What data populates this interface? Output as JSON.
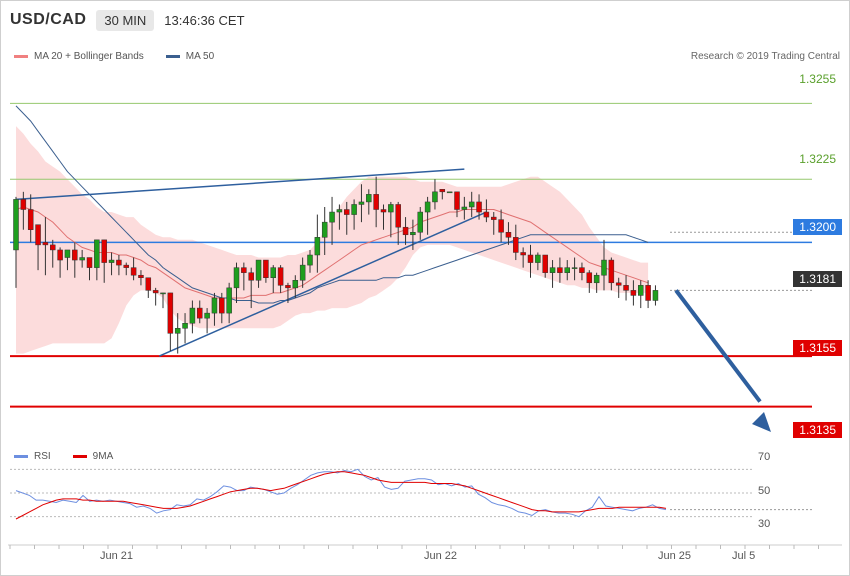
{
  "header": {
    "symbol": "USD/CAD",
    "timeframe": "30 MIN",
    "time": "13:46:36 CET"
  },
  "legend": {
    "bollinger_label": "MA 20 + Bollinger Bands",
    "ma50_label": "MA 50",
    "rsi_label": "RSI",
    "rsi_ma_label": "9MA"
  },
  "copyright": "Research © 2019 Trading Central",
  "colors": {
    "bull": "#1e9e1e",
    "bear": "#e00000",
    "band": "#fcdcdc",
    "ma20": "#e07070",
    "ma50": "#3b5f8f",
    "resistance": "#2d7be0",
    "support": "#e00000",
    "pivot_line": "#96c86e",
    "arrow": "#2e5f9e",
    "rsi": "#6d8fe0"
  },
  "chart_data": {
    "type": "candlestick",
    "y_range": [
      1.3121,
      1.3269
    ],
    "price_labels": {
      "upper1": "1.3255",
      "upper2": "1.3225",
      "resistance": "1.3200",
      "last": "1.3181",
      "support1": "1.3155",
      "support2": "1.3135"
    },
    "x_labels": [
      "Jun 21",
      "Jun 22",
      "Jun 25",
      "Jul 5"
    ],
    "candles": [
      [
        1.3197,
        1.3218,
        1.3182,
        1.3217
      ],
      [
        1.3217,
        1.322,
        1.3205,
        1.3213
      ],
      [
        1.3213,
        1.3219,
        1.32,
        1.3205
      ],
      [
        1.3207,
        1.3206,
        1.3189,
        1.3199
      ],
      [
        1.32,
        1.321,
        1.3187,
        1.3199
      ],
      [
        1.3199,
        1.3201,
        1.319,
        1.3197
      ],
      [
        1.3197,
        1.3198,
        1.3186,
        1.3193
      ],
      [
        1.3194,
        1.3196,
        1.3189,
        1.3197
      ],
      [
        1.3197,
        1.32,
        1.3186,
        1.3193
      ],
      [
        1.3193,
        1.3197,
        1.319,
        1.3194
      ],
      [
        1.3194,
        1.3194,
        1.3185,
        1.319
      ],
      [
        1.319,
        1.3201,
        1.3185,
        1.3201
      ],
      [
        1.3201,
        1.3201,
        1.3184,
        1.3192
      ],
      [
        1.3192,
        1.3196,
        1.3187,
        1.3193
      ],
      [
        1.3193,
        1.3195,
        1.3187,
        1.3191
      ],
      [
        1.3191,
        1.3192,
        1.3187,
        1.319
      ],
      [
        1.319,
        1.3194,
        1.3185,
        1.3187
      ],
      [
        1.3187,
        1.3189,
        1.3183,
        1.3186
      ],
      [
        1.3186,
        1.3186,
        1.3178,
        1.3181
      ],
      [
        1.3181,
        1.3182,
        1.3175,
        1.318
      ],
      [
        1.318,
        1.318,
        1.3174,
        1.318
      ],
      [
        1.318,
        1.318,
        1.3157,
        1.3164
      ],
      [
        1.3164,
        1.3172,
        1.3156,
        1.3166
      ],
      [
        1.3166,
        1.3172,
        1.316,
        1.3168
      ],
      [
        1.3168,
        1.3177,
        1.3164,
        1.3174
      ],
      [
        1.3174,
        1.3177,
        1.3168,
        1.317
      ],
      [
        1.317,
        1.3174,
        1.3164,
        1.3172
      ],
      [
        1.3172,
        1.318,
        1.3167,
        1.3178
      ],
      [
        1.3178,
        1.318,
        1.3168,
        1.3172
      ],
      [
        1.3172,
        1.3184,
        1.3168,
        1.3182
      ],
      [
        1.3182,
        1.3192,
        1.3176,
        1.319
      ],
      [
        1.319,
        1.3192,
        1.3181,
        1.3188
      ],
      [
        1.3188,
        1.319,
        1.3174,
        1.3185
      ],
      [
        1.3185,
        1.3193,
        1.3182,
        1.3193
      ],
      [
        1.3193,
        1.3193,
        1.3184,
        1.3186
      ],
      [
        1.3186,
        1.3191,
        1.318,
        1.319
      ],
      [
        1.319,
        1.3191,
        1.318,
        1.3183
      ],
      [
        1.3183,
        1.3184,
        1.3176,
        1.3182
      ],
      [
        1.3182,
        1.3187,
        1.3178,
        1.3185
      ],
      [
        1.3185,
        1.3194,
        1.3182,
        1.3191
      ],
      [
        1.3191,
        1.3197,
        1.3188,
        1.3195
      ],
      [
        1.3195,
        1.3211,
        1.3188,
        1.3202
      ],
      [
        1.3202,
        1.3214,
        1.3195,
        1.3208
      ],
      [
        1.3208,
        1.3218,
        1.3199,
        1.3212
      ],
      [
        1.3212,
        1.3215,
        1.3205,
        1.3213
      ],
      [
        1.3213,
        1.3216,
        1.3203,
        1.3211
      ],
      [
        1.3211,
        1.3217,
        1.3205,
        1.3215
      ],
      [
        1.3215,
        1.3223,
        1.3208,
        1.3216
      ],
      [
        1.3216,
        1.3221,
        1.3211,
        1.3219
      ],
      [
        1.3219,
        1.3226,
        1.3206,
        1.3213
      ],
      [
        1.3213,
        1.3215,
        1.3205,
        1.3212
      ],
      [
        1.3212,
        1.3216,
        1.3202,
        1.3215
      ],
      [
        1.3215,
        1.3216,
        1.3199,
        1.3206
      ],
      [
        1.3206,
        1.321,
        1.3199,
        1.3203
      ],
      [
        1.3203,
        1.3209,
        1.3197,
        1.3204
      ],
      [
        1.3204,
        1.3214,
        1.3201,
        1.3212
      ],
      [
        1.3212,
        1.3218,
        1.3203,
        1.3216
      ],
      [
        1.3216,
        1.3225,
        1.3213,
        1.322
      ],
      [
        1.3221,
        1.3221,
        1.3217,
        1.322
      ],
      [
        1.322,
        1.322,
        1.322,
        1.322
      ],
      [
        1.322,
        1.322,
        1.321,
        1.3213
      ],
      [
        1.3213,
        1.3218,
        1.3209,
        1.3214
      ],
      [
        1.3214,
        1.322,
        1.321,
        1.3216
      ],
      [
        1.3216,
        1.3219,
        1.3209,
        1.3212
      ],
      [
        1.3212,
        1.3217,
        1.3208,
        1.321
      ],
      [
        1.321,
        1.3212,
        1.3203,
        1.3209
      ],
      [
        1.3209,
        1.3213,
        1.32,
        1.3204
      ],
      [
        1.3204,
        1.3208,
        1.3199,
        1.3202
      ],
      [
        1.3202,
        1.3207,
        1.3193,
        1.3196
      ],
      [
        1.3196,
        1.3198,
        1.319,
        1.3195
      ],
      [
        1.3195,
        1.3199,
        1.3186,
        1.3192
      ],
      [
        1.3192,
        1.3196,
        1.3189,
        1.3195
      ],
      [
        1.3195,
        1.3195,
        1.3186,
        1.3188
      ],
      [
        1.3188,
        1.3193,
        1.3182,
        1.319
      ],
      [
        1.319,
        1.3194,
        1.3184,
        1.3188
      ],
      [
        1.3188,
        1.3193,
        1.3185,
        1.319
      ],
      [
        1.319,
        1.3194,
        1.3185,
        1.319
      ],
      [
        1.319,
        1.3192,
        1.3185,
        1.3188
      ],
      [
        1.3188,
        1.3189,
        1.318,
        1.3184
      ],
      [
        1.3184,
        1.3188,
        1.318,
        1.3187
      ],
      [
        1.3187,
        1.3201,
        1.3181,
        1.3193
      ],
      [
        1.3193,
        1.3194,
        1.3181,
        1.3184
      ],
      [
        1.3184,
        1.3186,
        1.3178,
        1.3183
      ],
      [
        1.3183,
        1.3187,
        1.3177,
        1.3181
      ],
      [
        1.3181,
        1.3185,
        1.3175,
        1.3179
      ],
      [
        1.3179,
        1.3185,
        1.3174,
        1.3183
      ],
      [
        1.3183,
        1.3185,
        1.3174,
        1.3177
      ],
      [
        1.3177,
        1.3183,
        1.3175,
        1.3181
      ]
    ],
    "ma50": [
      1.3254,
      1.3251,
      1.3248,
      1.3244,
      1.324,
      1.3236,
      1.3232,
      1.3228,
      1.3225,
      1.3222,
      1.3219,
      1.3216,
      1.3213,
      1.321,
      1.3207,
      1.3204,
      1.3201,
      1.3198,
      1.3195,
      1.3193,
      1.319,
      1.3188,
      1.3186,
      1.3184,
      1.3182,
      1.3181,
      1.318,
      1.3179,
      1.3178,
      1.3178,
      1.3177,
      1.3177,
      1.3177,
      1.3176,
      1.3176,
      1.3176,
      1.3177,
      1.3177,
      1.3178,
      1.3179,
      1.318,
      1.3182,
      1.3183,
      1.3184,
      1.3185,
      1.3185,
      1.3185,
      1.3185,
      1.3185,
      1.3185,
      1.3186,
      1.3186,
      1.3186,
      1.3187,
      1.3187,
      1.3188,
      1.3189,
      1.319,
      1.3191,
      1.3192,
      1.3193,
      1.3194,
      1.3195,
      1.3196,
      1.3197,
      1.3198,
      1.3199,
      1.32,
      1.3201,
      1.3202,
      1.3203,
      1.3203,
      1.3203,
      1.3203,
      1.3203,
      1.3203,
      1.3203,
      1.3203,
      1.3203,
      1.3203,
      1.3203,
      1.3203,
      1.3203,
      1.3203,
      1.3202,
      1.3201,
      1.32
    ],
    "ma20": [
      1.3213,
      1.3214,
      1.3213,
      1.3212,
      1.321,
      1.3208,
      1.3205,
      1.3202,
      1.32,
      1.3198,
      1.3197,
      1.3196,
      1.3196,
      1.3196,
      1.3195,
      1.3195,
      1.3194,
      1.3193,
      1.3191,
      1.319,
      1.3188,
      1.3186,
      1.3184,
      1.3182,
      1.3181,
      1.318,
      1.3179,
      1.3178,
      1.3178,
      1.3178,
      1.3178,
      1.3178,
      1.3179,
      1.3179,
      1.3179,
      1.318,
      1.318,
      1.3181,
      1.3182,
      1.3183,
      1.3185,
      1.3187,
      1.3189,
      1.3191,
      1.3193,
      1.3195,
      1.3197,
      1.3199,
      1.32,
      1.3201,
      1.3202,
      1.3203,
      1.3204,
      1.3205,
      1.3206,
      1.3208,
      1.3209,
      1.321,
      1.3211,
      1.3212,
      1.3212,
      1.3213,
      1.3213,
      1.3213,
      1.3213,
      1.3213,
      1.3212,
      1.3211,
      1.321,
      1.3209,
      1.3208,
      1.3206,
      1.3204,
      1.3202,
      1.32,
      1.3198,
      1.3196,
      1.3194,
      1.3192,
      1.3191,
      1.319,
      1.3189,
      1.3188,
      1.3187,
      1.3186,
      1.3185,
      1.3184
    ],
    "bb_upper": [
      1.3246,
      1.3243,
      1.3239,
      1.3236,
      1.3232,
      1.323,
      1.3228,
      1.3225,
      1.3222,
      1.3219,
      1.3217,
      1.3214,
      1.3212,
      1.3212,
      1.3211,
      1.321,
      1.321,
      1.3207,
      1.3205,
      1.3203,
      1.3202,
      1.3202,
      1.3201,
      1.3201,
      1.3201,
      1.32,
      1.3199,
      1.3198,
      1.3197,
      1.3196,
      1.3195,
      1.3195,
      1.3195,
      1.3194,
      1.3194,
      1.3194,
      1.3194,
      1.3195,
      1.3195,
      1.3196,
      1.3197,
      1.32,
      1.3205,
      1.321,
      1.3214,
      1.3218,
      1.3221,
      1.3224,
      1.3226,
      1.3226,
      1.3226,
      1.3226,
      1.3226,
      1.3226,
      1.3225,
      1.3224,
      1.3224,
      1.3224,
      1.3224,
      1.3223,
      1.3222,
      1.3222,
      1.3222,
      1.3222,
      1.3222,
      1.3222,
      1.3222,
      1.3223,
      1.3224,
      1.3225,
      1.3226,
      1.3226,
      1.3224,
      1.3222,
      1.322,
      1.3217,
      1.3214,
      1.3211,
      1.3206,
      1.3202,
      1.3198,
      1.3196,
      1.3195,
      1.3194,
      1.3193,
      1.3192,
      1.3192
    ],
    "bb_lower": [
      1.3156,
      1.3156,
      1.3157,
      1.3158,
      1.3159,
      1.316,
      1.316,
      1.316,
      1.316,
      1.316,
      1.316,
      1.316,
      1.316,
      1.3162,
      1.3168,
      1.3175,
      1.3179,
      1.3181,
      1.3181,
      1.318,
      1.3178,
      1.3173,
      1.317,
      1.3168,
      1.3167,
      1.3166,
      1.3166,
      1.3166,
      1.3166,
      1.3166,
      1.3166,
      1.3166,
      1.3166,
      1.3166,
      1.3166,
      1.3166,
      1.3167,
      1.3169,
      1.3171,
      1.3172,
      1.3172,
      1.3173,
      1.3173,
      1.3174,
      1.3174,
      1.3174,
      1.3175,
      1.3176,
      1.3178,
      1.3179,
      1.3181,
      1.3183,
      1.3186,
      1.319,
      1.3195,
      1.3198,
      1.3199,
      1.3199,
      1.3199,
      1.3199,
      1.3198,
      1.3197,
      1.3196,
      1.3195,
      1.3194,
      1.3193,
      1.3192,
      1.3191,
      1.319,
      1.3189,
      1.3188,
      1.3187,
      1.3186,
      1.3185,
      1.3184,
      1.3183,
      1.3183,
      1.3182,
      1.3182,
      1.3181,
      1.3181,
      1.3181,
      1.318,
      1.318,
      1.318,
      1.318,
      1.318
    ],
    "resistance_level": 1.32,
    "support_levels": [
      1.3155,
      1.3135
    ],
    "last_price": 1.3181,
    "upper_lines": [
      1.3255,
      1.3225
    ],
    "rsi": {
      "y_ticks": [
        "70",
        "50",
        "30"
      ],
      "y_range": [
        20,
        80
      ],
      "values": [
        52,
        50,
        48,
        44,
        44,
        43,
        42,
        44,
        43,
        42,
        48,
        43,
        44,
        43,
        44,
        43,
        42,
        41,
        38,
        39,
        37,
        33,
        35,
        36,
        40,
        39,
        40,
        45,
        44,
        47,
        51,
        56,
        55,
        52,
        52,
        55,
        54,
        53,
        51,
        49,
        50,
        54,
        57,
        61,
        65,
        67,
        68,
        68,
        67,
        69,
        68,
        70,
        64,
        61,
        63,
        55,
        53,
        54,
        60,
        61,
        62,
        62,
        61,
        57,
        58,
        56,
        58,
        55,
        56,
        49,
        46,
        42,
        40,
        39,
        37,
        34,
        33,
        31,
        35,
        36,
        34,
        33,
        33,
        32,
        30,
        35,
        38,
        47,
        39,
        38,
        37,
        36,
        35,
        37,
        38,
        40,
        37,
        36
      ],
      "ma9": [
        28,
        31,
        34,
        37,
        40,
        42,
        44,
        45,
        45,
        45,
        44,
        44,
        43,
        43,
        43,
        43,
        43,
        42,
        41,
        40,
        39,
        38,
        37,
        37,
        37,
        38,
        39,
        41,
        43,
        45,
        47,
        49,
        51,
        52,
        53,
        54,
        54,
        53,
        52,
        53,
        54,
        56,
        58,
        60,
        62,
        64,
        66,
        67,
        68,
        68,
        67,
        66,
        65,
        63,
        61,
        60,
        59,
        59,
        59,
        59,
        59,
        59,
        58,
        58,
        58,
        58,
        57,
        56,
        54,
        52,
        50,
        48,
        46,
        44,
        42,
        40,
        38,
        36,
        35,
        35,
        34,
        34,
        34,
        34,
        34,
        35,
        36,
        37,
        37,
        37,
        38,
        38,
        38,
        38,
        38,
        38,
        38,
        37
      ]
    }
  }
}
